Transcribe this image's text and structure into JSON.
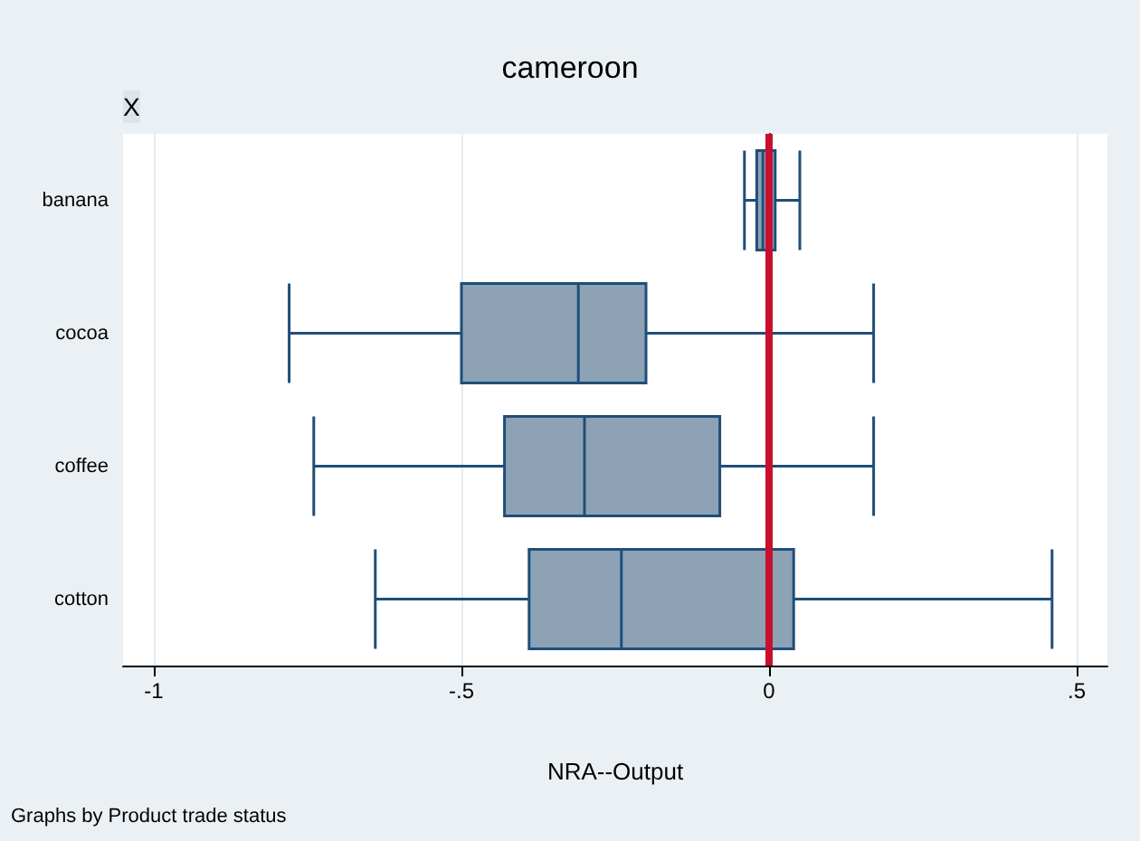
{
  "chart_data": {
    "type": "box",
    "orientation": "horizontal",
    "title": "cameroon",
    "subtitle": "X",
    "xlabel": "NRA--Output",
    "categories": [
      "banana",
      "cocoa",
      "coffee",
      "cotton"
    ],
    "series": [
      {
        "color": "#8ea2b6",
        "boxes": [
          {
            "low": -0.04,
            "q1": -0.02,
            "median": -0.01,
            "q3": 0.01,
            "high": 0.05
          },
          {
            "low": -0.78,
            "q1": -0.5,
            "median": -0.31,
            "q3": -0.2,
            "high": 0.17
          },
          {
            "low": -0.74,
            "q1": -0.43,
            "median": -0.3,
            "q3": -0.08,
            "high": 0.17
          },
          {
            "low": -0.64,
            "q1": -0.39,
            "median": -0.24,
            "q3": 0.04,
            "high": 0.46
          }
        ]
      }
    ],
    "xlim": [
      -1.05,
      0.55
    ],
    "xticks": [
      {
        "value": -1,
        "label": "-1"
      },
      {
        "value": -0.5,
        "label": "-.5"
      },
      0,
      {
        "value": 0.5,
        "label": ".5"
      }
    ],
    "grid": "x",
    "ref_lines": [
      {
        "axis": "x",
        "value": 0,
        "color": "#c8102e"
      }
    ],
    "annotations": [
      "Graphs by Product trade status"
    ]
  }
}
